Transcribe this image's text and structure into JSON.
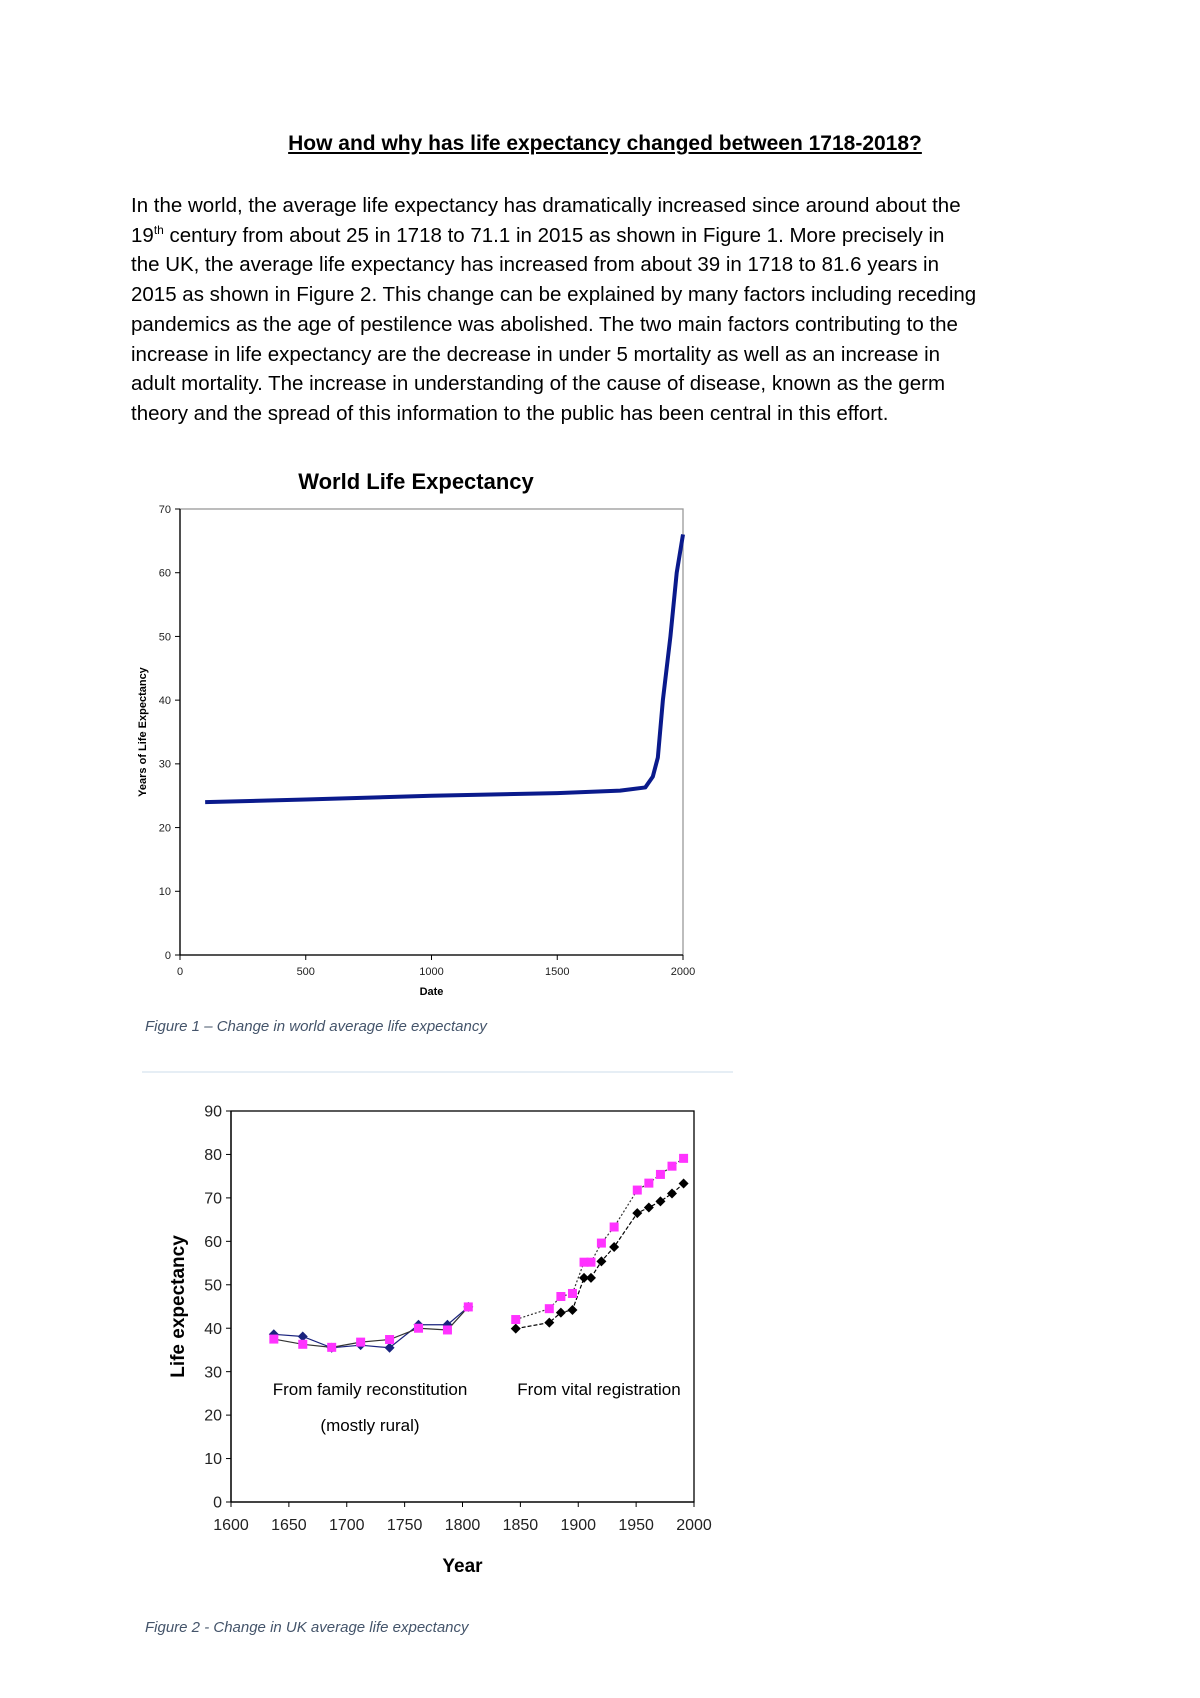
{
  "title": "How and why has life expectancy changed between 1718-2018?",
  "paragraph": {
    "line1": "In the world, the average life expectancy has dramatically increased since around about the",
    "line2_pre": "19",
    "line2_sup": "th",
    "line2_post": " century from about 25 in 1718 to 71.1 in 2015 as shown in Figure 1. More precisely in",
    "line3": "the UK, the average life expectancy has increased from about 39 in 1718 to 81.6 years in",
    "line4": "2015 as shown in Figure 2. This change can be explained by many factors including receding",
    "line5": "pandemics as the age of pestilence was abolished. The two main factors contributing to the",
    "line6": "increase in life expectancy are the decrease in under 5 mortality as well as an increase in",
    "line7": "adult mortality. The increase in understanding of the cause of disease, known as the germ",
    "line8": "theory and the spread of this information to the public has been central in this effort."
  },
  "figure1_caption": "Figure 1 – Change in world average life expectancy",
  "figure2_caption": "Figure 2 - Change in UK average life expectancy",
  "chart_data": [
    {
      "type": "line",
      "title": "World Life Expectancy",
      "xlabel": "Date",
      "ylabel": "Years of Life Expectancy",
      "xlim": [
        0,
        2000
      ],
      "ylim": [
        0,
        70
      ],
      "xticks": [
        "0",
        "500",
        "1000",
        "1500",
        "2000"
      ],
      "yticks": [
        "0",
        "10",
        "20",
        "30",
        "40",
        "50",
        "60",
        "70"
      ],
      "grid": false,
      "color": "#0a1a8c",
      "x": [
        100,
        500,
        1000,
        1500,
        1750,
        1850,
        1880,
        1900,
        1920,
        1950,
        1975,
        2000
      ],
      "y": [
        24,
        24.4,
        25,
        25.4,
        25.8,
        26.3,
        28,
        31,
        40,
        50,
        60,
        66
      ]
    },
    {
      "type": "line",
      "xlabel": "Year",
      "ylabel": "Life expectancy",
      "xlim": [
        1600,
        2000
      ],
      "ylim": [
        0,
        90
      ],
      "xticks": [
        "1600",
        "1650",
        "1700",
        "1750",
        "1800",
        "1850",
        "1900",
        "1950",
        "2000"
      ],
      "yticks": [
        "0",
        "10",
        "20",
        "30",
        "40",
        "50",
        "60",
        "70",
        "80",
        "90"
      ],
      "grid": false,
      "annotations": [
        "From family reconstitution",
        "(mostly rural)",
        "From vital registration"
      ],
      "series": [
        {
          "color": "#1a237e",
          "marker": "diamond",
          "x": [
            1637,
            1662,
            1687,
            1712,
            1737,
            1762,
            1787,
            1805
          ],
          "y": [
            38.6,
            38.1,
            35.5,
            36.1,
            35.5,
            40.8,
            40.8,
            44.9
          ]
        },
        {
          "color": "#ff33ff",
          "marker": "square",
          "x": [
            1637,
            1662,
            1687,
            1712,
            1737,
            1762,
            1787,
            1805
          ],
          "y": [
            37.5,
            36.3,
            35.6,
            36.8,
            37.4,
            40.0,
            39.6,
            44.9
          ]
        },
        {
          "color": "#000000",
          "marker": "diamond",
          "x": [
            1846,
            1875,
            1885,
            1895,
            1905,
            1911,
            1920,
            1931,
            1951,
            1961,
            1971,
            1981,
            1991
          ],
          "y": [
            39.9,
            41.3,
            43.6,
            44.2,
            51.6,
            51.6,
            55.4,
            58.7,
            66.5,
            67.8,
            69.2,
            71.0,
            73.3
          ]
        },
        {
          "color": "#ff33ff",
          "marker": "square",
          "x": [
            1846,
            1875,
            1885,
            1895,
            1905,
            1911,
            1920,
            1931,
            1951,
            1961,
            1971,
            1981,
            1991
          ],
          "y": [
            42.0,
            44.5,
            47.3,
            48.0,
            55.2,
            55.2,
            59.6,
            63.3,
            71.8,
            73.4,
            75.4,
            77.3,
            79.1
          ]
        }
      ]
    }
  ]
}
